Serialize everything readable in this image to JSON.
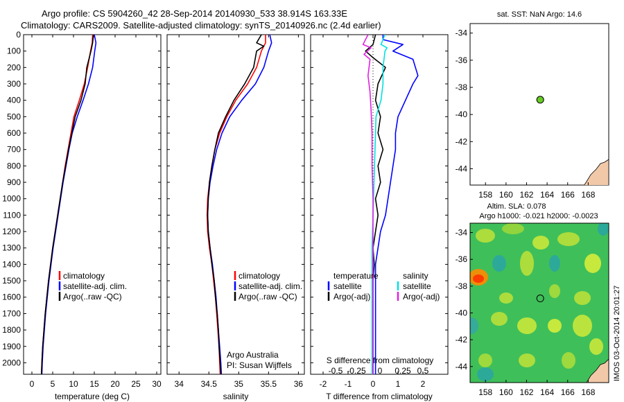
{
  "header": {
    "line1": "Argo profile: CS 5904260_42 28-Sep-2014 20140930_533 38.914S 163.33E",
    "line2": "Climatology: CARS2009. Satellite-adjusted climatology: synTS_20140926.nc (2.4d earlier)"
  },
  "side_label": "IMOS 03-Oct-2014 20:01:27",
  "colors": {
    "climatology": "#ff0000",
    "satellite": "#0000ff",
    "argo": "#000000",
    "salinity_sat": "#00e0e0",
    "salinity_argo": "#e020e0",
    "float_marker": "#66cc22",
    "land": "#f2c9a8"
  },
  "chart_data": [
    {
      "type": "line",
      "name": "temperature",
      "xlabel": "temperature (deg C)",
      "ylabel": "",
      "xlim": [
        -2,
        31
      ],
      "ylim": [
        2070,
        0
      ],
      "xticks": [
        0,
        5,
        10,
        15,
        20,
        25,
        30
      ],
      "yticks": [
        0,
        100,
        200,
        300,
        400,
        500,
        600,
        700,
        800,
        900,
        1000,
        1100,
        1200,
        1300,
        1400,
        1500,
        1600,
        1700,
        1800,
        1900,
        2000
      ],
      "legend": [
        "climatology",
        "satellite-adj. clim.",
        "Argo(..raw -QC)"
      ],
      "series": [
        {
          "name": "climatology",
          "color": "#ff0000",
          "points": [
            [
              14.6,
              0
            ],
            [
              14.5,
              50
            ],
            [
              14.1,
              100
            ],
            [
              13.4,
              200
            ],
            [
              12.6,
              300
            ],
            [
              11.4,
              400
            ],
            [
              10.1,
              500
            ],
            [
              9.4,
              600
            ],
            [
              8.7,
              700
            ],
            [
              8.0,
              800
            ],
            [
              7.4,
              900
            ],
            [
              6.8,
              1000
            ],
            [
              6.2,
              1100
            ],
            [
              5.6,
              1200
            ],
            [
              5.0,
              1300
            ],
            [
              4.5,
              1400
            ],
            [
              4.0,
              1500
            ],
            [
              3.6,
              1600
            ],
            [
              3.2,
              1700
            ],
            [
              2.9,
              1800
            ],
            [
              2.6,
              1900
            ],
            [
              2.4,
              2000
            ],
            [
              2.3,
              2070
            ]
          ]
        },
        {
          "name": "satellite-adj. clim.",
          "color": "#0000ff",
          "points": [
            [
              15.0,
              0
            ],
            [
              15.4,
              50
            ],
            [
              15.1,
              100
            ],
            [
              14.6,
              200
            ],
            [
              13.6,
              300
            ],
            [
              12.3,
              400
            ],
            [
              10.9,
              500
            ],
            [
              9.7,
              600
            ],
            [
              8.9,
              700
            ],
            [
              8.2,
              800
            ],
            [
              7.5,
              900
            ],
            [
              6.9,
              1000
            ],
            [
              6.3,
              1100
            ],
            [
              5.7,
              1200
            ],
            [
              5.1,
              1300
            ],
            [
              4.6,
              1400
            ],
            [
              4.1,
              1500
            ],
            [
              3.7,
              1600
            ],
            [
              3.3,
              1700
            ],
            [
              3.0,
              1800
            ],
            [
              2.7,
              1900
            ],
            [
              2.5,
              2000
            ],
            [
              2.4,
              2070
            ]
          ]
        },
        {
          "name": "Argo(..raw -QC)",
          "color": "#000000",
          "points": [
            [
              14.8,
              0
            ],
            [
              14.6,
              50
            ],
            [
              14.2,
              100
            ],
            [
              13.2,
              200
            ],
            [
              12.8,
              300
            ],
            [
              11.8,
              400
            ],
            [
              10.4,
              500
            ],
            [
              9.6,
              600
            ],
            [
              8.8,
              700
            ],
            [
              8.1,
              800
            ],
            [
              7.4,
              900
            ],
            [
              6.8,
              1000
            ],
            [
              6.2,
              1100
            ],
            [
              5.6,
              1200
            ],
            [
              5.0,
              1300
            ],
            [
              4.5,
              1400
            ],
            [
              4.0,
              1500
            ],
            [
              3.6,
              1600
            ],
            [
              3.2,
              1700
            ],
            [
              2.9,
              1800
            ],
            [
              2.6,
              1900
            ],
            [
              2.4,
              2000
            ],
            [
              2.3,
              2070
            ]
          ]
        }
      ]
    },
    {
      "type": "line",
      "name": "salinity",
      "xlabel": "salinity",
      "xlim": [
        33.8,
        36.1
      ],
      "ylim": [
        2070,
        0
      ],
      "xticks": [
        34,
        34.5,
        35,
        35.5,
        36
      ],
      "legend": [
        "climatology",
        "satellite-adj. clim.",
        "Argo(..raw -QC)"
      ],
      "annotation": [
        "Argo Australia",
        "PI: Susan Wijffels"
      ],
      "series": [
        {
          "name": "climatology",
          "color": "#ff0000",
          "points": [
            [
              35.45,
              0
            ],
            [
              35.45,
              50
            ],
            [
              35.38,
              100
            ],
            [
              35.3,
              200
            ],
            [
              35.15,
              300
            ],
            [
              34.95,
              400
            ],
            [
              34.8,
              500
            ],
            [
              34.68,
              600
            ],
            [
              34.6,
              700
            ],
            [
              34.55,
              800
            ],
            [
              34.51,
              900
            ],
            [
              34.48,
              1000
            ],
            [
              34.47,
              1100
            ],
            [
              34.48,
              1200
            ],
            [
              34.51,
              1300
            ],
            [
              34.55,
              1400
            ],
            [
              34.58,
              1500
            ],
            [
              34.61,
              1600
            ],
            [
              34.63,
              1700
            ],
            [
              34.65,
              1800
            ],
            [
              34.67,
              1900
            ],
            [
              34.68,
              2000
            ],
            [
              34.69,
              2070
            ]
          ]
        },
        {
          "name": "satellite-adj. clim.",
          "color": "#0000ff",
          "points": [
            [
              35.52,
              0
            ],
            [
              35.55,
              50
            ],
            [
              35.5,
              100
            ],
            [
              35.42,
              200
            ],
            [
              35.28,
              300
            ],
            [
              35.05,
              400
            ],
            [
              34.85,
              500
            ],
            [
              34.72,
              600
            ],
            [
              34.63,
              700
            ],
            [
              34.57,
              800
            ],
            [
              34.52,
              900
            ],
            [
              34.49,
              1000
            ],
            [
              34.48,
              1100
            ],
            [
              34.49,
              1200
            ],
            [
              34.52,
              1300
            ],
            [
              34.56,
              1400
            ],
            [
              34.59,
              1500
            ],
            [
              34.62,
              1600
            ],
            [
              34.64,
              1700
            ],
            [
              34.66,
              1800
            ],
            [
              34.68,
              1900
            ],
            [
              34.7,
              2000
            ],
            [
              34.71,
              2070
            ]
          ]
        },
        {
          "name": "Argo(..raw -QC)",
          "color": "#000000",
          "points": [
            [
              35.38,
              0
            ],
            [
              35.3,
              50
            ],
            [
              35.42,
              70
            ],
            [
              35.3,
              100
            ],
            [
              35.25,
              200
            ],
            [
              35.1,
              300
            ],
            [
              34.92,
              400
            ],
            [
              34.78,
              500
            ],
            [
              34.66,
              600
            ],
            [
              34.6,
              700
            ],
            [
              34.55,
              800
            ],
            [
              34.51,
              900
            ],
            [
              34.49,
              1000
            ],
            [
              34.48,
              1100
            ],
            [
              34.49,
              1200
            ],
            [
              34.52,
              1300
            ],
            [
              34.55,
              1400
            ],
            [
              34.59,
              1500
            ],
            [
              34.61,
              1600
            ],
            [
              34.64,
              1700
            ],
            [
              34.66,
              1800
            ],
            [
              34.67,
              1900
            ],
            [
              34.69,
              2000
            ],
            [
              34.7,
              2070
            ]
          ]
        }
      ]
    },
    {
      "type": "line",
      "name": "difference",
      "xlabel": "T difference from climatology",
      "xlabel_top": "S difference from climatology",
      "xlim": [
        -2.5,
        3.0
      ],
      "ylim": [
        2070,
        0
      ],
      "xticks": [
        -2,
        -1,
        0,
        1,
        2
      ],
      "xticks_top": [
        "-0.5",
        "-0.25",
        "0",
        "0.25",
        "0.5"
      ],
      "legend_left_title": "temperature",
      "legend_left": [
        "satellite",
        "Argo(-adj)"
      ],
      "legend_right_title": "salinity",
      "legend_right": [
        "satellite",
        "Argo(-adj)"
      ],
      "series": [
        {
          "name": "T satellite",
          "color": "#0000ff",
          "points": [
            [
              0.4,
              0
            ],
            [
              0.4,
              30
            ],
            [
              1.2,
              60
            ],
            [
              1.0,
              80
            ],
            [
              0.8,
              100
            ],
            [
              1.6,
              150
            ],
            [
              1.8,
              250
            ],
            [
              1.6,
              300
            ],
            [
              1.3,
              400
            ],
            [
              1.0,
              500
            ],
            [
              0.9,
              600
            ],
            [
              0.9,
              700
            ],
            [
              0.8,
              800
            ],
            [
              0.7,
              900
            ],
            [
              0.6,
              1000
            ],
            [
              0.5,
              1100
            ],
            [
              0.3,
              1200
            ],
            [
              0.2,
              1300
            ],
            [
              0.1,
              1400
            ],
            [
              0.1,
              1500
            ],
            [
              0.1,
              1700
            ],
            [
              0.1,
              2070
            ]
          ]
        },
        {
          "name": "T Argo(-adj)",
          "color": "#000000",
          "points": [
            [
              0.1,
              0
            ],
            [
              0.0,
              60
            ],
            [
              -0.3,
              100
            ],
            [
              0.0,
              140
            ],
            [
              0.5,
              200
            ],
            [
              0.2,
              300
            ],
            [
              0.1,
              400
            ],
            [
              0.3,
              500
            ],
            [
              0.2,
              600
            ],
            [
              0.4,
              700
            ],
            [
              0.2,
              800
            ],
            [
              0.3,
              900
            ],
            [
              0.1,
              1000
            ],
            [
              0.2,
              1100
            ],
            [
              0.1,
              1200
            ],
            [
              0.0,
              1300
            ],
            [
              0.05,
              1400
            ],
            [
              0.0,
              1500
            ],
            [
              0.0,
              1700
            ],
            [
              0.0,
              2070
            ]
          ]
        },
        {
          "name": "S satellite",
          "color": "#00e0e0",
          "points": [
            [
              0.12,
              0
            ],
            [
              0.08,
              60
            ],
            [
              0.14,
              80
            ],
            [
              0.12,
              100
            ],
            [
              0.1,
              200
            ],
            [
              0.1,
              300
            ],
            [
              0.08,
              400
            ],
            [
              0.03,
              500
            ],
            [
              0.02,
              700
            ],
            [
              0.01,
              900
            ],
            [
              0.0,
              1100
            ],
            [
              -0.01,
              1300
            ],
            [
              -0.01,
              1500
            ],
            [
              -0.01,
              1800
            ],
            [
              -0.01,
              2070
            ]
          ]
        },
        {
          "name": "S Argo(-adj)",
          "color": "#e020e0",
          "points": [
            [
              -0.05,
              0
            ],
            [
              -0.1,
              60
            ],
            [
              -0.02,
              80
            ],
            [
              -0.09,
              120
            ],
            [
              -0.03,
              150
            ],
            [
              -0.05,
              250
            ],
            [
              -0.03,
              350
            ],
            [
              -0.02,
              450
            ],
            [
              -0.01,
              600
            ],
            [
              -0.01,
              800
            ],
            [
              0.0,
              1000
            ],
            [
              0.0,
              1300
            ],
            [
              0.0,
              1600
            ],
            [
              0.0,
              2070
            ]
          ]
        }
      ]
    },
    {
      "type": "scatter",
      "name": "sst_map",
      "title": "sat. SST: NaN Argo: 14.6",
      "xlim": [
        156.5,
        170
      ],
      "ylim": [
        -45.2,
        -33.3
      ],
      "xticks": [
        158,
        160,
        162,
        164,
        166,
        168
      ],
      "yticks": [
        -34,
        -36,
        -38,
        -40,
        -42,
        -44
      ],
      "points": [
        [
          163.33,
          -38.914
        ]
      ]
    },
    {
      "type": "heatmap",
      "name": "sla_map",
      "title_line1": "Altim. SLA: 0.078",
      "title_line2": "Argo h1000: -0.021 h2000: -0.0023",
      "xlim": [
        156.5,
        170
      ],
      "ylim": [
        -45.2,
        -33.3
      ],
      "xticks": [
        158,
        160,
        162,
        164,
        166,
        168
      ],
      "yticks": [
        -34,
        -36,
        -38,
        -40,
        -42,
        -44
      ],
      "points": [
        [
          163.33,
          -38.914
        ]
      ]
    }
  ]
}
